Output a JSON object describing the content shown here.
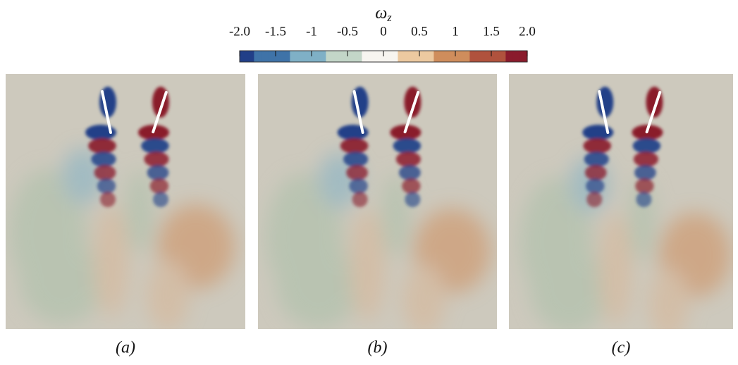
{
  "colorbar": {
    "title": "ω",
    "title_subscript": "z",
    "lim": [
      -2,
      2
    ],
    "ticks": [
      {
        "value": -2,
        "label": "-2.0"
      },
      -1.5,
      -1,
      -0.5,
      0,
      0.5,
      1,
      1.5,
      {
        "value": 2,
        "label": "2.0"
      }
    ],
    "colors": [
      "#213f88",
      "#3f73a8",
      "#7fb0c6",
      "#c3d6c8",
      "#f7f5f0",
      "#ecc9a0",
      "#cf8d5c",
      "#b0523d",
      "#8a1b2c"
    ]
  },
  "panels": [
    {
      "label": "(a)"
    },
    {
      "label": "(b)"
    },
    {
      "label": "(c)"
    }
  ]
}
